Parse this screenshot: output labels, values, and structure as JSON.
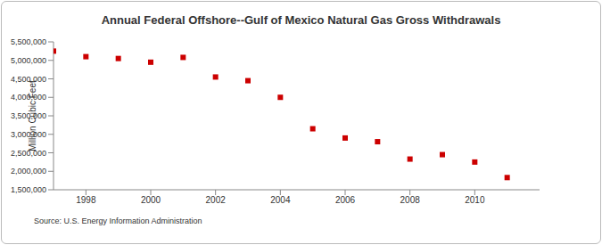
{
  "chart_data": {
    "type": "scatter",
    "title": "Annual Federal Offshore--Gulf of Mexico Natural Gas Gross Withdrawals",
    "y_label": "Million Cubic Feet",
    "source": "Source: U.S. Energy Information Administration",
    "x": [
      1997,
      1998,
      1999,
      2000,
      2001,
      2002,
      2003,
      2004,
      2005,
      2006,
      2007,
      2008,
      2009,
      2010,
      2011
    ],
    "values": [
      5250000,
      5100000,
      5050000,
      4950000,
      5080000,
      4550000,
      4450000,
      4000000,
      3150000,
      2900000,
      2800000,
      2330000,
      2450000,
      2250000,
      1830000
    ],
    "color": "#cc0000",
    "marker": "square",
    "xlim": [
      1997,
      2012
    ],
    "xticks": [
      1998,
      2000,
      2002,
      2004,
      2006,
      2008,
      2010
    ],
    "ylim": [
      1500000,
      5500000
    ],
    "yticks": [
      {
        "value": 1500000,
        "label": "1,500,000"
      },
      {
        "value": 2000000,
        "label": "2,000,000"
      },
      {
        "value": 2500000,
        "label": "2,500,000"
      },
      {
        "value": 3000000,
        "label": "3,000,000"
      },
      {
        "value": 3500000,
        "label": "3,500,000"
      },
      {
        "value": 4000000,
        "label": "4,000,000"
      },
      {
        "value": 4500000,
        "label": "4,500,000"
      },
      {
        "value": 5000000,
        "label": "5,000,000"
      },
      {
        "value": 5500000,
        "label": "5,500,000"
      }
    ],
    "grid": false
  }
}
